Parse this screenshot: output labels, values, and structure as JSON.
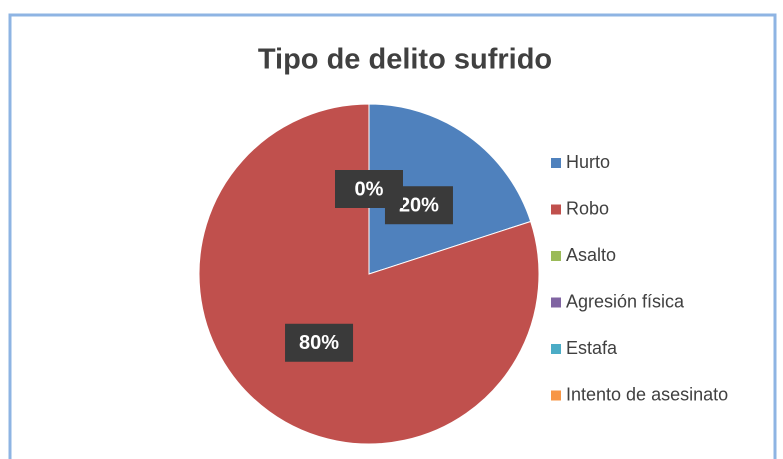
{
  "chart_data": {
    "type": "pie",
    "title": "Tipo de delito sufrido",
    "categories": [
      "Hurto",
      "Robo",
      "Asalto",
      "Agresión física",
      "Estafa",
      "Intento de asesinato"
    ],
    "values": [
      20,
      80,
      0,
      0,
      0,
      0
    ],
    "value_labels": [
      "20%",
      "80%",
      "0%",
      "0%",
      "0%",
      "0%"
    ],
    "colors": [
      "#4f81bd",
      "#c0504d",
      "#9bbb59",
      "#8064a2",
      "#4bacc6",
      "#f79646"
    ],
    "legend": "right"
  }
}
